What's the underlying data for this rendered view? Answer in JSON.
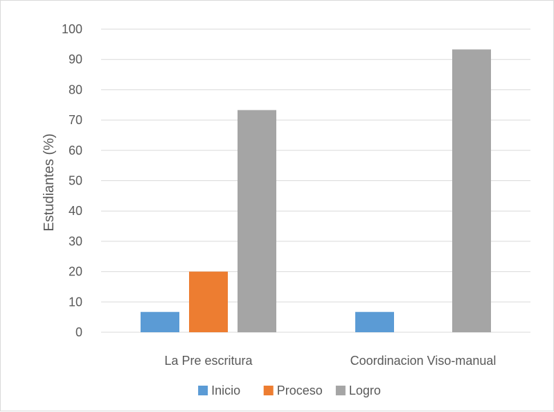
{
  "chart_data": {
    "type": "bar",
    "title": "",
    "xlabel": "",
    "ylabel": "Estudiantes (%)",
    "ylim": [
      0,
      100
    ],
    "yticks": [
      0,
      10,
      20,
      30,
      40,
      50,
      60,
      70,
      80,
      90,
      100
    ],
    "grid": true,
    "legend_position": "bottom",
    "categories": [
      "La Pre escritura",
      "Coordinacion Viso-manual"
    ],
    "series": [
      {
        "name": "Inicio",
        "color": "#5b9bd5",
        "values": [
          6.7,
          6.7
        ]
      },
      {
        "name": "Proceso",
        "color": "#ed7d31",
        "values": [
          20,
          0
        ]
      },
      {
        "name": "Logro",
        "color": "#a5a5a5",
        "values": [
          73.3,
          93.3
        ]
      }
    ]
  }
}
